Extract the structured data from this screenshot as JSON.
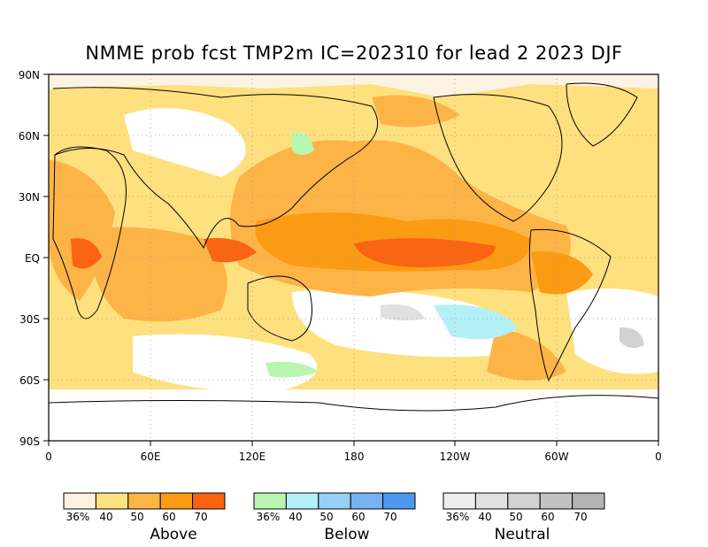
{
  "title": "NMME prob fcst TMP2m IC=202310 for lead 2 2023 DJF",
  "axes": {
    "lat_labels": [
      "90N",
      "60N",
      "30N",
      "EQ",
      "30S",
      "60S",
      "90S"
    ],
    "lon_labels": [
      "0",
      "60E",
      "120E",
      "180",
      "120W",
      "60W",
      "0"
    ]
  },
  "legends": [
    {
      "name": "Above",
      "tick_labels": [
        "36%",
        "40",
        "50",
        "60",
        "70"
      ],
      "colors": [
        "#fdf1e0",
        "#fde281",
        "#fdb447",
        "#fb9b14",
        "#f96412"
      ]
    },
    {
      "name": "Below",
      "tick_labels": [
        "36%",
        "40",
        "50",
        "60",
        "70"
      ],
      "colors": [
        "#b9f6b2",
        "#b4f0f8",
        "#98cff6",
        "#77b3f1",
        "#4c9af0"
      ]
    },
    {
      "name": "Neutral",
      "tick_labels": [
        "36%",
        "40",
        "50",
        "60",
        "70"
      ],
      "colors": [
        "#eeeeee",
        "#e0e0e0",
        "#d2d2d2",
        "#c2c2c2",
        "#b3b3b3"
      ]
    }
  ]
}
